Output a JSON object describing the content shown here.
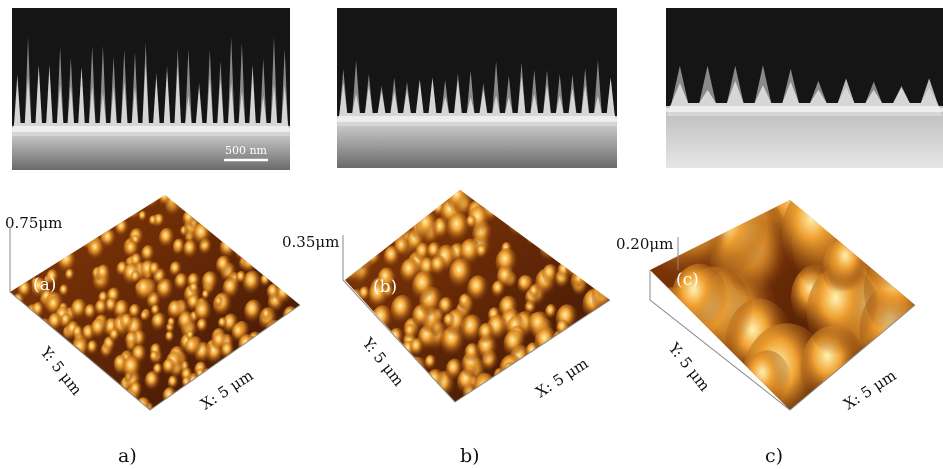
{
  "panels": [
    {
      "sem": {
        "scale_bar": "500 nm"
      },
      "afm": {
        "z_scale": "0.75μm",
        "inset_label": "(a)",
        "y_axis": "Y: 5 μm",
        "x_axis": "X: 5 μm"
      },
      "caption": "a)"
    },
    {
      "afm": {
        "z_scale": "0.35μm",
        "inset_label": "(b)",
        "y_axis": "Y: 5 μm",
        "x_axis": "X: 5 μm"
      },
      "caption": "b)"
    },
    {
      "afm": {
        "z_scale": "0.20μm",
        "inset_label": "(c)",
        "y_axis": "Y: 5 μm",
        "x_axis": "X: 5 μm"
      },
      "caption": "c)"
    }
  ]
}
